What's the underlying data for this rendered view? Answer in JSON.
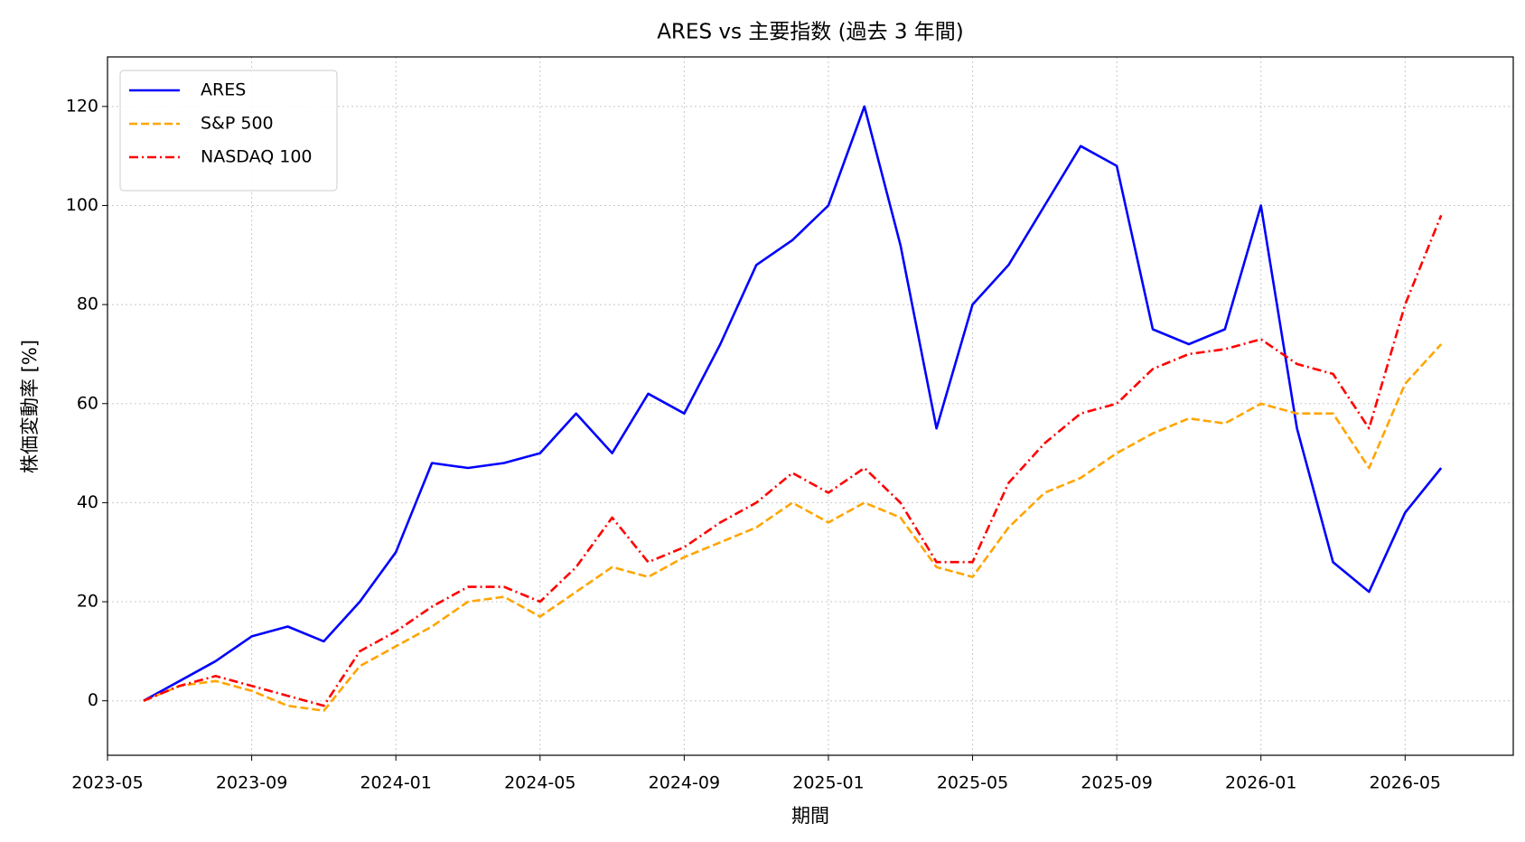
{
  "chart_data": {
    "type": "line",
    "title": "ARES vs 主要指数 (過去 3 年間)",
    "xlabel": "期間",
    "ylabel": "株価変動率 [%]",
    "x": [
      "2023-06",
      "2023-07",
      "2023-08",
      "2023-09",
      "2023-10",
      "2023-11",
      "2023-12",
      "2024-01",
      "2024-02",
      "2024-03",
      "2024-04",
      "2024-05",
      "2024-06",
      "2024-07",
      "2024-08",
      "2024-09",
      "2024-10",
      "2024-11",
      "2024-12",
      "2025-01",
      "2025-02",
      "2025-03",
      "2025-04",
      "2025-05",
      "2025-06",
      "2025-07",
      "2025-08",
      "2025-09",
      "2025-10",
      "2025-11",
      "2025-12",
      "2026-01",
      "2026-02",
      "2026-03",
      "2026-04",
      "2026-05",
      "2026-06"
    ],
    "series": [
      {
        "name": "ARES",
        "color": "#0000ff",
        "linestyle": "solid",
        "values": [
          0,
          4,
          8,
          13,
          15,
          12,
          20,
          30,
          48,
          47,
          48,
          50,
          58,
          50,
          62,
          58,
          72,
          88,
          93,
          100,
          120,
          92,
          55,
          80,
          88,
          100,
          112,
          108,
          75,
          72,
          75,
          100,
          55,
          28,
          22,
          38,
          47
        ]
      },
      {
        "name": "S&P 500",
        "color": "#ffa500",
        "linestyle": "dashed",
        "values": [
          0,
          3,
          4,
          2,
          -1,
          -2,
          7,
          11,
          15,
          20,
          21,
          17,
          22,
          27,
          25,
          29,
          32,
          35,
          40,
          36,
          40,
          37,
          27,
          25,
          35,
          42,
          45,
          50,
          54,
          57,
          56,
          60,
          58,
          58,
          47,
          64,
          72
        ]
      },
      {
        "name": "NASDAQ 100",
        "color": "#ff0000",
        "linestyle": "dashdot",
        "values": [
          0,
          3,
          5,
          3,
          1,
          -1,
          10,
          14,
          19,
          23,
          23,
          20,
          27,
          37,
          28,
          31,
          36,
          40,
          46,
          42,
          47,
          40,
          28,
          28,
          44,
          52,
          58,
          60,
          67,
          70,
          71,
          73,
          68,
          66,
          55,
          80,
          98
        ]
      }
    ],
    "xlim": [
      "2023-05",
      "2026-08"
    ],
    "xticks": [
      "2023-05",
      "2023-09",
      "2024-01",
      "2024-05",
      "2024-09",
      "2025-01",
      "2025-05",
      "2025-09",
      "2026-01",
      "2026-05"
    ],
    "ylim": [
      -11,
      130
    ],
    "yticks": [
      0,
      20,
      40,
      60,
      80,
      100,
      120
    ],
    "grid": true,
    "legend": "upper left"
  }
}
